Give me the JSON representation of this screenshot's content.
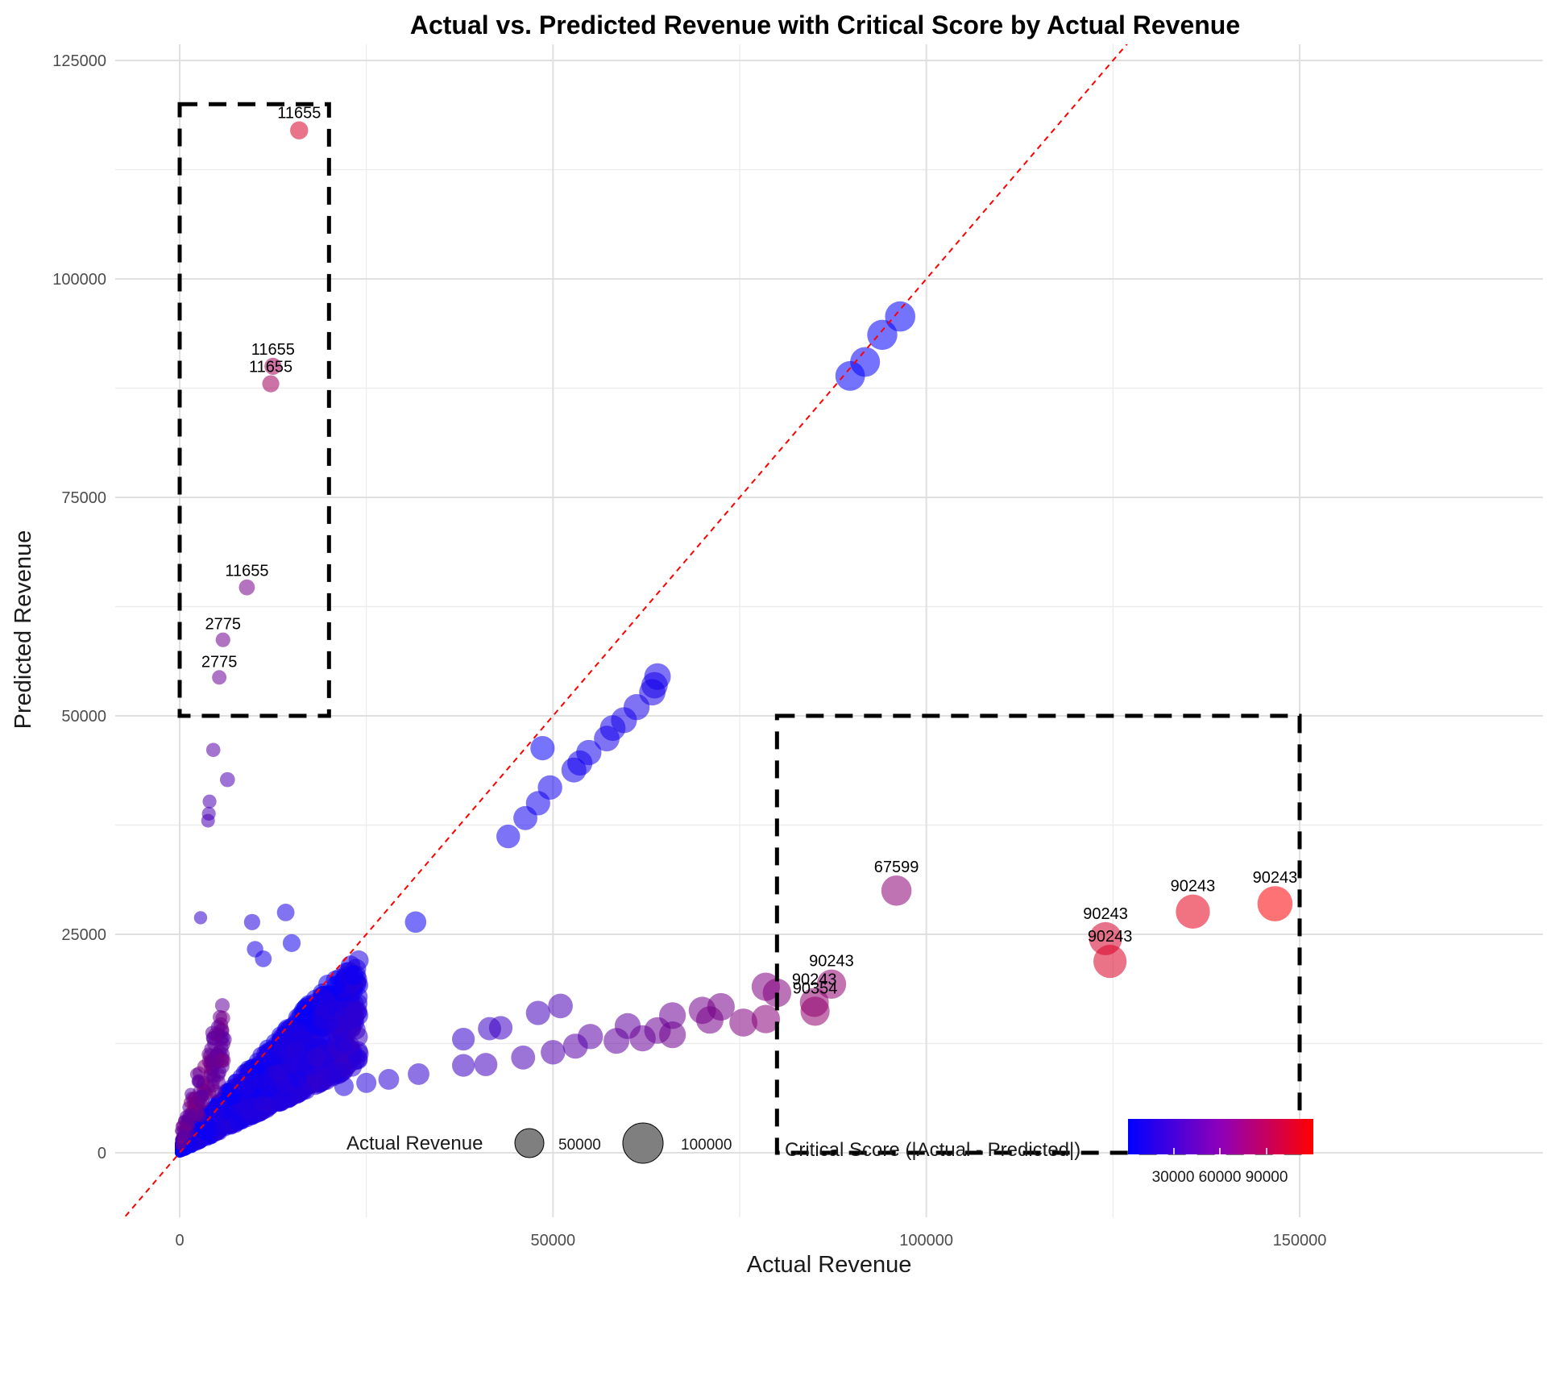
{
  "chart_data": {
    "type": "scatter",
    "title": "Actual vs. Predicted Revenue with Critical Score by Actual Revenue",
    "xlabel": "Actual Revenue",
    "ylabel": "Predicted Revenue",
    "xlim": [
      -7500,
      157000
    ],
    "ylim": [
      -7000,
      127500
    ],
    "x_ticks": [
      0,
      50000,
      100000,
      150000
    ],
    "x_tick_labels": [
      "0",
      "50000",
      "100000",
      "150000"
    ],
    "y_ticks": [
      0,
      25000,
      50000,
      75000,
      100000,
      125000
    ],
    "y_tick_labels": [
      "0",
      "25000",
      "50000",
      "75000",
      "100000",
      "125000"
    ],
    "grid": true,
    "reference_line": {
      "type": "y = x",
      "color": "#ff0000",
      "style": "dashed"
    },
    "highlight_boxes": [
      {
        "x": [
          0,
          20000
        ],
        "y": [
          50000,
          120000
        ]
      },
      {
        "x": [
          80000,
          150000
        ],
        "y": [
          0,
          50000
        ]
      }
    ],
    "color_scale": {
      "low": "#0000ff",
      "high": "#ff0000",
      "range": [
        0,
        120000
      ]
    },
    "points": [
      {
        "x": 16000,
        "y": 117000,
        "label": "11655"
      },
      {
        "x": 12500,
        "y": 90000,
        "label": "11655"
      },
      {
        "x": 12200,
        "y": 88000,
        "label": "11655"
      },
      {
        "x": 9000,
        "y": 64700,
        "label": "11655"
      },
      {
        "x": 5800,
        "y": 58700,
        "label": "2775"
      },
      {
        "x": 5300,
        "y": 54400,
        "label": "2775"
      },
      {
        "x": 4500,
        "y": 46100
      },
      {
        "x": 6400,
        "y": 42700
      },
      {
        "x": 4000,
        "y": 40200
      },
      {
        "x": 3900,
        "y": 38800
      },
      {
        "x": 3800,
        "y": 38000
      },
      {
        "x": 2800,
        "y": 26900
      },
      {
        "x": 9700,
        "y": 26400
      },
      {
        "x": 14200,
        "y": 27500
      },
      {
        "x": 31600,
        "y": 26400
      },
      {
        "x": 23300,
        "y": 20300
      },
      {
        "x": 15000,
        "y": 24000
      },
      {
        "x": 10100,
        "y": 23300
      },
      {
        "x": 11200,
        "y": 22200
      },
      {
        "x": 89800,
        "y": 88900
      },
      {
        "x": 91800,
        "y": 90500
      },
      {
        "x": 94100,
        "y": 93600
      },
      {
        "x": 96500,
        "y": 95700
      },
      {
        "x": 44000,
        "y": 36200
      },
      {
        "x": 46300,
        "y": 38300
      },
      {
        "x": 48000,
        "y": 40000
      },
      {
        "x": 49600,
        "y": 41800
      },
      {
        "x": 48600,
        "y": 46300
      },
      {
        "x": 52800,
        "y": 43800
      },
      {
        "x": 53600,
        "y": 44600
      },
      {
        "x": 54800,
        "y": 45800
      },
      {
        "x": 57200,
        "y": 47400
      },
      {
        "x": 58000,
        "y": 48600
      },
      {
        "x": 59500,
        "y": 49500
      },
      {
        "x": 61200,
        "y": 51000
      },
      {
        "x": 63300,
        "y": 52700
      },
      {
        "x": 63600,
        "y": 53500
      },
      {
        "x": 64000,
        "y": 54500
      },
      {
        "x": 38000,
        "y": 13000
      },
      {
        "x": 41500,
        "y": 14200
      },
      {
        "x": 43000,
        "y": 14300
      },
      {
        "x": 48000,
        "y": 16000
      },
      {
        "x": 51000,
        "y": 16800
      },
      {
        "x": 55000,
        "y": 13300
      },
      {
        "x": 58500,
        "y": 12800
      },
      {
        "x": 60000,
        "y": 14500
      },
      {
        "x": 64000,
        "y": 14000
      },
      {
        "x": 66000,
        "y": 15700
      },
      {
        "x": 70000,
        "y": 16300
      },
      {
        "x": 72500,
        "y": 16700
      },
      {
        "x": 75500,
        "y": 14900
      },
      {
        "x": 78500,
        "y": 15300
      },
      {
        "x": 78500,
        "y": 19000
      },
      {
        "x": 80000,
        "y": 18300
      },
      {
        "x": 38000,
        "y": 10000
      },
      {
        "x": 41000,
        "y": 10100
      },
      {
        "x": 46000,
        "y": 10900
      },
      {
        "x": 50000,
        "y": 11500
      },
      {
        "x": 53000,
        "y": 12200
      },
      {
        "x": 62000,
        "y": 13100
      },
      {
        "x": 66000,
        "y": 13500
      },
      {
        "x": 71000,
        "y": 15200
      },
      {
        "x": 32000,
        "y": 9000
      },
      {
        "x": 28000,
        "y": 8400
      },
      {
        "x": 25000,
        "y": 8000
      },
      {
        "x": 22000,
        "y": 7600
      },
      {
        "x": 85000,
        "y": 17200,
        "label": "90243"
      },
      {
        "x": 87300,
        "y": 19300,
        "label": "90243"
      },
      {
        "x": 85100,
        "y": 16200,
        "label": "90354"
      },
      {
        "x": 96000,
        "y": 30000,
        "label": "67599"
      },
      {
        "x": 124000,
        "y": 24500,
        "label": "90243"
      },
      {
        "x": 124600,
        "y": 21900,
        "label": "90243"
      },
      {
        "x": 135700,
        "y": 27600,
        "label": "90243"
      },
      {
        "x": 146700,
        "y": 28500,
        "label": "90243"
      }
    ],
    "dense_cluster": "many points concentrated between 0 and 25000 actual revenue with predicted revenue roughly 0 to 20000",
    "legend": {
      "size": {
        "title": "Actual Revenue",
        "entries": [
          "50000",
          "100000"
        ]
      },
      "color": {
        "title": "Critical Score (|Actual - Predicted|)",
        "tick_labels": [
          "30000",
          "60000",
          "90000"
        ]
      }
    }
  }
}
